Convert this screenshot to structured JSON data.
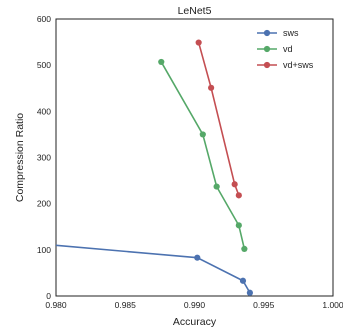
{
  "chart_data": {
    "type": "line",
    "title": "LeNet5",
    "xlabel": "Accuracy",
    "ylabel": "Compression Ratio",
    "xlim": [
      0.98,
      1.0
    ],
    "ylim": [
      0,
      600
    ],
    "xticks": [
      0.98,
      0.985,
      0.99,
      0.995,
      1.0
    ],
    "xtick_labels": [
      "0.980",
      "0.985",
      "0.990",
      "0.995",
      "1.000"
    ],
    "yticks": [
      0,
      100,
      200,
      300,
      400,
      500,
      600
    ],
    "ytick_labels": [
      "0",
      "100",
      "200",
      "300",
      "400",
      "500",
      "600"
    ],
    "grid": false,
    "legend_position": "top-right",
    "series": [
      {
        "name": "sws",
        "color": "#4c72b0",
        "points": [
          [
            0.978,
            115
          ],
          [
            0.9902,
            83
          ],
          [
            0.9935,
            33
          ],
          [
            0.994,
            7
          ]
        ]
      },
      {
        "name": "vd",
        "color": "#55a868",
        "points": [
          [
            0.9876,
            507
          ],
          [
            0.9906,
            350
          ],
          [
            0.9916,
            237
          ],
          [
            0.9932,
            153
          ],
          [
            0.9936,
            102
          ]
        ]
      },
      {
        "name": "vd+sws",
        "color": "#c44e52",
        "points": [
          [
            0.9903,
            549
          ],
          [
            0.9912,
            451
          ],
          [
            0.9929,
            242
          ],
          [
            0.9932,
            218
          ]
        ]
      }
    ]
  }
}
